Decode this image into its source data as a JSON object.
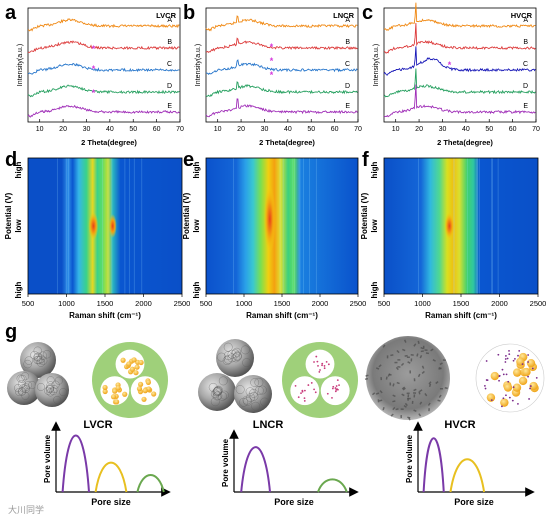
{
  "xrd": {
    "panels": [
      {
        "letter": "a",
        "tag": "LVCR",
        "curves": [
          "A",
          "B",
          "C",
          "D",
          "E"
        ],
        "colors": [
          "#f08a16",
          "#dd3d3d",
          "#2a78cc",
          "#27a060",
          "#a02fb8"
        ]
      },
      {
        "letter": "b",
        "tag": "LNCR",
        "curves": [
          "A",
          "B",
          "C",
          "D",
          "E"
        ],
        "colors": [
          "#f08a16",
          "#dd3d3d",
          "#2a78cc",
          "#27a060",
          "#a02fb8"
        ]
      },
      {
        "letter": "c",
        "tag": "HVCR",
        "curves": [
          "A",
          "B",
          "C",
          "D",
          "E"
        ],
        "colors": [
          "#f08a16",
          "#dd3d3d",
          "#1a1ab8",
          "#27a060",
          "#a02fb8"
        ]
      }
    ],
    "ylabel": "Intensity(a.u.)",
    "xlabel": "2 Theta(degree)",
    "xticks": [
      "10",
      "20",
      "30",
      "40",
      "50",
      "60",
      "70"
    ],
    "star": "*"
  },
  "raman": {
    "panels": [
      {
        "letter": "d"
      },
      {
        "letter": "e"
      },
      {
        "letter": "f"
      }
    ],
    "ylabel": "Potential (V)",
    "yticks": [
      "high",
      "low",
      "high"
    ],
    "xlabel": "Raman shift (cm⁻¹)",
    "xticks": [
      "500",
      "1000",
      "1500",
      "2000",
      "2500"
    ]
  },
  "schematic": {
    "letter": "g",
    "materials": [
      {
        "name": "LVCR"
      },
      {
        "name": "LNCR"
      },
      {
        "name": "HVCR"
      }
    ],
    "ylabel": "Pore volume",
    "xlabel": "Pore size"
  },
  "watermark": "大川同学",
  "colors": {
    "purple": "#7a3aa8",
    "yellow": "#e8c020",
    "green": "#6aa84f",
    "star": "#d63adc",
    "circle_bg": "#9fd07a"
  }
}
